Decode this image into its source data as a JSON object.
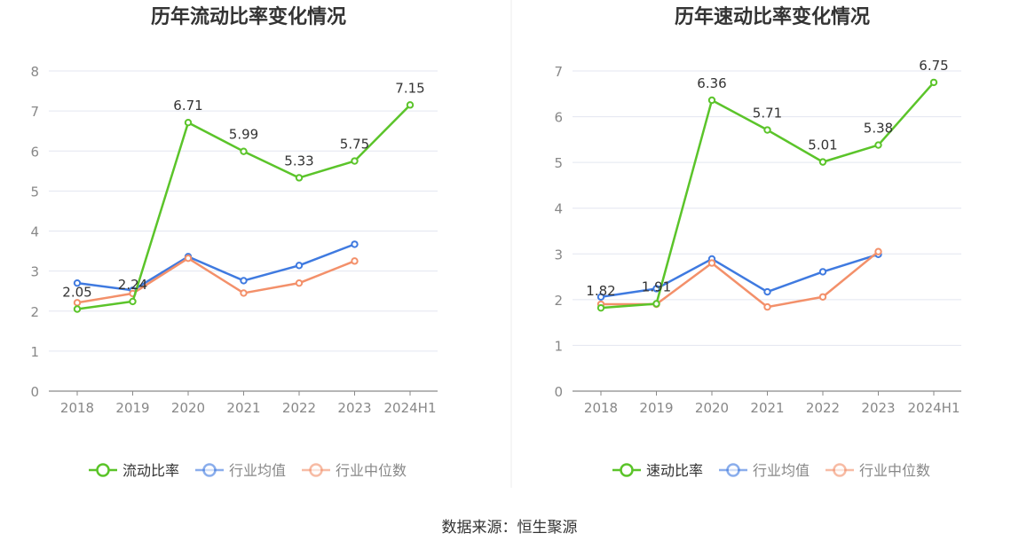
{
  "source_text": "数据来源：恒生聚源",
  "colors": {
    "primary": "#5bc42a",
    "average": "#3f7ae0",
    "median": "#f3906a",
    "grid": "#e3e6f0",
    "axis": "#8a8a8a",
    "text": "#333333",
    "tick": "#888888"
  },
  "chart_data": [
    {
      "type": "line",
      "title": "历年流动比率变化情况",
      "categories": [
        "2018",
        "2019",
        "2020",
        "2021",
        "2022",
        "2023",
        "2024H1"
      ],
      "ylim": [
        0,
        8
      ],
      "yticks": [
        0,
        1,
        2,
        3,
        4,
        5,
        6,
        7,
        8
      ],
      "grid": true,
      "legend_position": "bottom",
      "series": [
        {
          "name": "流动比率",
          "color": "#5bc42a",
          "values": [
            2.05,
            2.24,
            6.71,
            5.99,
            5.33,
            5.75,
            7.15
          ],
          "labels": [
            "2.05",
            "2.24",
            "6.71",
            "5.99",
            "5.33",
            "5.75",
            "7.15"
          ]
        },
        {
          "name": "行业均值",
          "color": "#3f7ae0",
          "values": [
            2.7,
            2.52,
            3.36,
            2.76,
            3.14,
            3.67,
            null
          ]
        },
        {
          "name": "行业中位数",
          "color": "#f3906a",
          "values": [
            2.21,
            2.44,
            3.32,
            2.45,
            2.7,
            3.25,
            null
          ]
        }
      ]
    },
    {
      "type": "line",
      "title": "历年速动比率变化情况",
      "categories": [
        "2018",
        "2019",
        "2020",
        "2021",
        "2022",
        "2023",
        "2024H1"
      ],
      "ylim": [
        0,
        7
      ],
      "yticks": [
        0,
        1,
        2,
        3,
        4,
        5,
        6,
        7
      ],
      "grid": true,
      "legend_position": "bottom",
      "series": [
        {
          "name": "速动比率",
          "color": "#5bc42a",
          "values": [
            1.82,
            1.91,
            6.36,
            5.71,
            5.01,
            5.38,
            6.75
          ],
          "labels": [
            "1.82",
            "1.91",
            "6.36",
            "5.71",
            "5.01",
            "5.38",
            "6.75"
          ]
        },
        {
          "name": "行业均值",
          "color": "#3f7ae0",
          "values": [
            2.06,
            2.24,
            2.89,
            2.17,
            2.61,
            2.99,
            null
          ]
        },
        {
          "name": "行业中位数",
          "color": "#f3906a",
          "values": [
            1.9,
            1.9,
            2.8,
            1.84,
            2.06,
            3.05,
            null
          ]
        }
      ]
    }
  ]
}
